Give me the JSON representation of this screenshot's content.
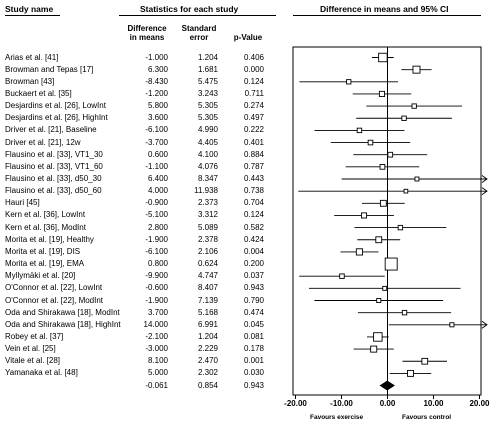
{
  "headers": {
    "study": "Study name",
    "stats": "Statistics for each study",
    "plot": "Difference in means and 95% CI",
    "col_diff_1": "Difference",
    "col_diff_2": "in means",
    "col_se_1": "Standard",
    "col_se_2": "error",
    "col_p": "p-Value"
  },
  "chart_data": {
    "type": "forest",
    "xlim": [
      -20,
      20
    ],
    "ticks": [
      "-20.00",
      "-10.00",
      "0.00",
      "10.00",
      "20.00"
    ],
    "xlabel_left": "Favours exercise",
    "xlabel_right": "Favours control",
    "studies": [
      {
        "name": "Arias et al. [41]",
        "diff": "-1.000",
        "se": "1.204",
        "p": "0.406",
        "d": -1.0,
        "s": 1.204
      },
      {
        "name": "Browman and Tepas [17]",
        "diff": "6.300",
        "se": "1.681",
        "p": "0.000",
        "d": 6.3,
        "s": 1.681
      },
      {
        "name": "Browman [43]",
        "diff": "-8.430",
        "se": "5.475",
        "p": "0.124",
        "d": -8.43,
        "s": 5.475
      },
      {
        "name": "Buckaert et al. [35]",
        "diff": "-1.200",
        "se": "3.243",
        "p": "0.711",
        "d": -1.2,
        "s": 3.243
      },
      {
        "name": "Desjardins et al. [26], LowInt",
        "diff": "5.800",
        "se": "5.305",
        "p": "0.274",
        "d": 5.8,
        "s": 5.305
      },
      {
        "name": "Desjardins et al. [26], HighInt",
        "diff": "3.600",
        "se": "5.305",
        "p": "0.497",
        "d": 3.6,
        "s": 5.305
      },
      {
        "name": "Driver et al. [21], Baseline",
        "diff": "-6.100",
        "se": "4.990",
        "p": "0.222",
        "d": -6.1,
        "s": 4.99
      },
      {
        "name": "Driver et al. [21], 12w",
        "diff": "-3.700",
        "se": "4.405",
        "p": "0.401",
        "d": -3.7,
        "s": 4.405
      },
      {
        "name": "Flausino et al. [33], VT1_30",
        "diff": "0.600",
        "se": "4.100",
        "p": "0.884",
        "d": 0.6,
        "s": 4.1
      },
      {
        "name": "Flausino et al. [33], VT1_60",
        "diff": "-1.100",
        "se": "4.076",
        "p": "0.787",
        "d": -1.1,
        "s": 4.076
      },
      {
        "name": "Flausino et al. [33], d50_30",
        "diff": "6.400",
        "se": "8.347",
        "p": "0.443",
        "d": 6.4,
        "s": 8.347
      },
      {
        "name": "Flausino et al. [33], d50_60",
        "diff": "4.000",
        "se": "11.938",
        "p": "0.738",
        "d": 4.0,
        "s": 11.938
      },
      {
        "name": "Hauri [45]",
        "diff": "-0.900",
        "se": "2.373",
        "p": "0.704",
        "d": -0.9,
        "s": 2.373
      },
      {
        "name": "Kern et al. [36], LowInt",
        "diff": "-5.100",
        "se": "3.312",
        "p": "0.124",
        "d": -5.1,
        "s": 3.312
      },
      {
        "name": "Kern et al. [36], ModInt",
        "diff": "2.800",
        "se": "5.089",
        "p": "0.582",
        "d": 2.8,
        "s": 5.089
      },
      {
        "name": "Morita et al. [19], Healthy",
        "diff": "-1.900",
        "se": "2.378",
        "p": "0.424",
        "d": -1.9,
        "s": 2.378
      },
      {
        "name": "Morita et al. [19], DIS",
        "diff": "-6.100",
        "se": "2.106",
        "p": "0.004",
        "d": -6.1,
        "s": 2.106
      },
      {
        "name": "Morita et al. [19], EMA",
        "diff": "0.800",
        "se": "0.624",
        "p": "0.200",
        "d": 0.8,
        "s": 0.624
      },
      {
        "name": "Myllymäki et al. [20]",
        "diff": "-9.900",
        "se": "4.747",
        "p": "0.037",
        "d": -9.9,
        "s": 4.747
      },
      {
        "name": "O'Connor et al. [22], LowInt",
        "diff": "-0.600",
        "se": "8.407",
        "p": "0.943",
        "d": -0.6,
        "s": 8.407
      },
      {
        "name": "O'Connor et al. [22], ModInt",
        "diff": "-1.900",
        "se": "7.139",
        "p": "0.790",
        "d": -1.9,
        "s": 7.139
      },
      {
        "name": "Oda and Shirakawa [18], ModInt",
        "diff": "3.700",
        "se": "5.168",
        "p": "0.474",
        "d": 3.7,
        "s": 5.168
      },
      {
        "name": "Oda and Shirakawa [18], HighInt",
        "diff": "14.000",
        "se": "6.991",
        "p": "0.045",
        "d": 14.0,
        "s": 6.991
      },
      {
        "name": "Robey et al. [37]",
        "diff": "-2.100",
        "se": "1.204",
        "p": "0.081",
        "d": -2.1,
        "s": 1.204
      },
      {
        "name": "Vein et al. [25]",
        "diff": "-3.000",
        "se": "2.229",
        "p": "0.178",
        "d": -3.0,
        "s": 2.229
      },
      {
        "name": "Vitale et al. [28]",
        "diff": "8.100",
        "se": "2.470",
        "p": "0.001",
        "d": 8.1,
        "s": 2.47
      },
      {
        "name": "Yamanaka et al. [48]",
        "diff": "5.000",
        "se": "2.302",
        "p": "0.030",
        "d": 5.0,
        "s": 2.302
      }
    ],
    "summary": {
      "diff": "-0.061",
      "se": "0.854",
      "p": "0.943",
      "d": -0.061,
      "s": 0.854
    }
  }
}
